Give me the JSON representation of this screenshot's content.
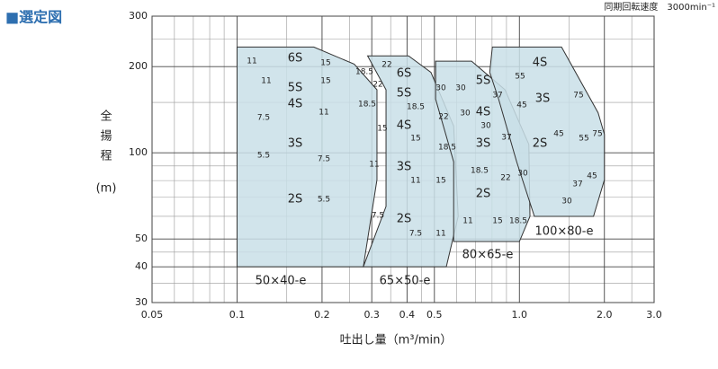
{
  "chart_data": {
    "type": "selection",
    "title": "■選定図",
    "note": "同期回転速度　3000min⁻¹",
    "x_label": "吐出し量（m³/min）",
    "y_label": [
      "全",
      "揚",
      "程",
      "(m)"
    ],
    "log_x": true,
    "log_y": true,
    "grid": true,
    "xlim": [
      0.05,
      3.0
    ],
    "ylim": [
      30,
      300
    ],
    "xticks": [
      0.05,
      0.1,
      0.2,
      0.3,
      0.4,
      0.5,
      {
        "value": 1,
        "label": "1.0"
      },
      {
        "value": 2,
        "label": "2.0"
      },
      {
        "value": 3,
        "label": "3.0"
      }
    ],
    "yticks": [
      30,
      40,
      50,
      100,
      200,
      300
    ],
    "minor_xticks": [
      0.06,
      0.07,
      0.08,
      0.09,
      0.15,
      0.25,
      0.35,
      0.45,
      0.6,
      0.7,
      0.8,
      0.9,
      1.5,
      2.5
    ],
    "minor_yticks": [
      35,
      45,
      60,
      70,
      80,
      90,
      150,
      250
    ],
    "color": "#c9dfe7",
    "regions": [
      {
        "name": "50×40-e",
        "x": [
          0.1,
          0.187,
          0.26,
          0.313,
          0.313,
          0.28,
          0.1
        ],
        "y": [
          234,
          234,
          204,
          166,
          80.5,
          40,
          40
        ]
      },
      {
        "name": "65×50-e",
        "x": [
          0.29,
          0.405,
          0.486,
          0.585,
          0.607,
          0.551,
          0.28,
          0.337,
          0.337
        ],
        "y": [
          218,
          218,
          191,
          124,
          60,
          40,
          40,
          65,
          166
        ]
      },
      {
        "name": "80×65-e",
        "x": [
          0.505,
          0.677,
          0.889,
          1.08,
          1.09,
          1.0,
          0.585,
          0.585,
          0.505
        ],
        "y": [
          209,
          209,
          166,
          107,
          60,
          49,
          49,
          93,
          154
        ]
      },
      {
        "name": "100×80-e",
        "x": [
          0.802,
          1.41,
          1.9,
          2.0,
          2.0,
          1.83,
          1.13,
          0.978,
          0.844,
          0.785
        ],
        "y": [
          234,
          234,
          138,
          116,
          80.5,
          60,
          60,
          93,
          154,
          191
        ]
      }
    ],
    "stages": [
      "6S",
      "5S",
      "4S",
      "3S",
      "2S",
      "6S",
      "5S",
      "4S",
      "3S",
      "2S",
      "5S",
      "4S",
      "3S",
      "2S",
      "4S",
      "3S",
      "2S"
    ],
    "kw_labels": [
      "11",
      "15",
      "18.5",
      "22",
      "11",
      "15",
      "22",
      "18.5",
      "11",
      "7.5",
      "15",
      "15",
      "5.5",
      "7.5",
      "11",
      "11",
      "15",
      "5.5",
      "7.5",
      "7.5",
      "11",
      "30",
      "30",
      "18.5",
      "22",
      "30",
      "18.5",
      "30",
      "37",
      "55",
      "45",
      "37",
      "75",
      "45",
      "55",
      "75",
      "45",
      "37",
      "30",
      "18.5",
      "22",
      "30",
      "11",
      "15",
      "18.5"
    ]
  }
}
